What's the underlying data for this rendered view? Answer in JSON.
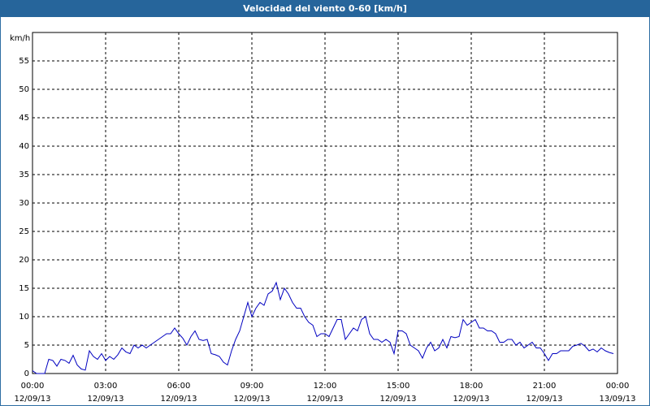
{
  "chart_data": {
    "type": "line",
    "title": "Velocidad del viento 0-60 [km/h]",
    "y_label": "km/h",
    "x": [
      0,
      10,
      20,
      30,
      40,
      50,
      60,
      70,
      80,
      90,
      100,
      110,
      120,
      130,
      140,
      150,
      160,
      170,
      180,
      190,
      200,
      210,
      220,
      230,
      240,
      250,
      260,
      270,
      280,
      290,
      300,
      310,
      320,
      330,
      340,
      350,
      360,
      370,
      380,
      390,
      400,
      410,
      420,
      430,
      440,
      450,
      460,
      470,
      480,
      490,
      500,
      510,
      520,
      530,
      540,
      550,
      560,
      570,
      580,
      590,
      600,
      610,
      620,
      630,
      640,
      650,
      660,
      670,
      680,
      690,
      700,
      710,
      720,
      730,
      740,
      750,
      760,
      770,
      780,
      790,
      800,
      810,
      820,
      830,
      840,
      850,
      860,
      870,
      880,
      890,
      900,
      910,
      920,
      930,
      940,
      950,
      960,
      970,
      980,
      990,
      1000,
      1010,
      1020,
      1030,
      1040,
      1050,
      1060,
      1070,
      1080,
      1090,
      1100,
      1110,
      1120,
      1130,
      1140,
      1150,
      1160,
      1170,
      1180,
      1190,
      1200,
      1210,
      1220,
      1230,
      1240,
      1250,
      1260,
      1270,
      1280,
      1290,
      1300,
      1310,
      1320,
      1330,
      1340,
      1350,
      1360,
      1370,
      1380,
      1390,
      1400,
      1410,
      1420,
      1430
    ],
    "series": [
      {
        "color": "#0000c0",
        "values": [
          0.5,
          0,
          0,
          0,
          2.5,
          2.3,
          1.3,
          2.5,
          2.3,
          1.8,
          3.2,
          1.5,
          0.8,
          0.6,
          4,
          3,
          2.5,
          3.5,
          2.3,
          3,
          2.5,
          3.3,
          4.5,
          3.8,
          3.5,
          5,
          4.5,
          5,
          4.5,
          5,
          5.5,
          6,
          6.5,
          7,
          7,
          8,
          7,
          6.2,
          5,
          6.5,
          7.5,
          6,
          5.8,
          6,
          3.5,
          3.3,
          3,
          2,
          1.5,
          4,
          6,
          7.5,
          10,
          12.5,
          10,
          11.5,
          12.5,
          12,
          14,
          14.5,
          16,
          13,
          15,
          14,
          12.5,
          11.5,
          11.5,
          10,
          9,
          8.5,
          6.5,
          7,
          7,
          6.5,
          8,
          9.5,
          9.5,
          6,
          7,
          8,
          7.5,
          9.5,
          10,
          7,
          6,
          6,
          5.5,
          6,
          5.5,
          3.5,
          7.5,
          7.5,
          7,
          5,
          4.5,
          4,
          2.7,
          4.5,
          5.5,
          4,
          4.5,
          6,
          4.5,
          6.5,
          6.3,
          6.5,
          9.5,
          8.5,
          9,
          9.5,
          8,
          8,
          7.5,
          7.5,
          7,
          5.5,
          5.5,
          6,
          6,
          5,
          5.5,
          4.5,
          5,
          5.5,
          4.5,
          4.5,
          3.5,
          2.3,
          3.5,
          3.5,
          4,
          4,
          4,
          4.8,
          5,
          5.3,
          4.8,
          4,
          4.3,
          3.8,
          4.5,
          4,
          3.7,
          3.5
        ]
      }
    ],
    "xlim": [
      0,
      1440
    ],
    "xticks": [
      {
        "value": 0,
        "label": "00:00",
        "date": "12/09/13"
      },
      {
        "value": 180,
        "label": "03:00",
        "date": "12/09/13"
      },
      {
        "value": 360,
        "label": "06:00",
        "date": "12/09/13"
      },
      {
        "value": 540,
        "label": "09:00",
        "date": "12/09/13"
      },
      {
        "value": 720,
        "label": "12:00",
        "date": "12/09/13"
      },
      {
        "value": 900,
        "label": "15:00",
        "date": "12/09/13"
      },
      {
        "value": 1080,
        "label": "18:00",
        "date": "12/09/13"
      },
      {
        "value": 1260,
        "label": "21:00",
        "date": "12/09/13"
      },
      {
        "value": 1440,
        "label": "00:00",
        "date": "13/09/13"
      }
    ],
    "ylim": [
      0,
      60
    ],
    "yticks": [
      0,
      5,
      10,
      15,
      20,
      25,
      30,
      35,
      40,
      45,
      50,
      55
    ],
    "grid": true
  }
}
